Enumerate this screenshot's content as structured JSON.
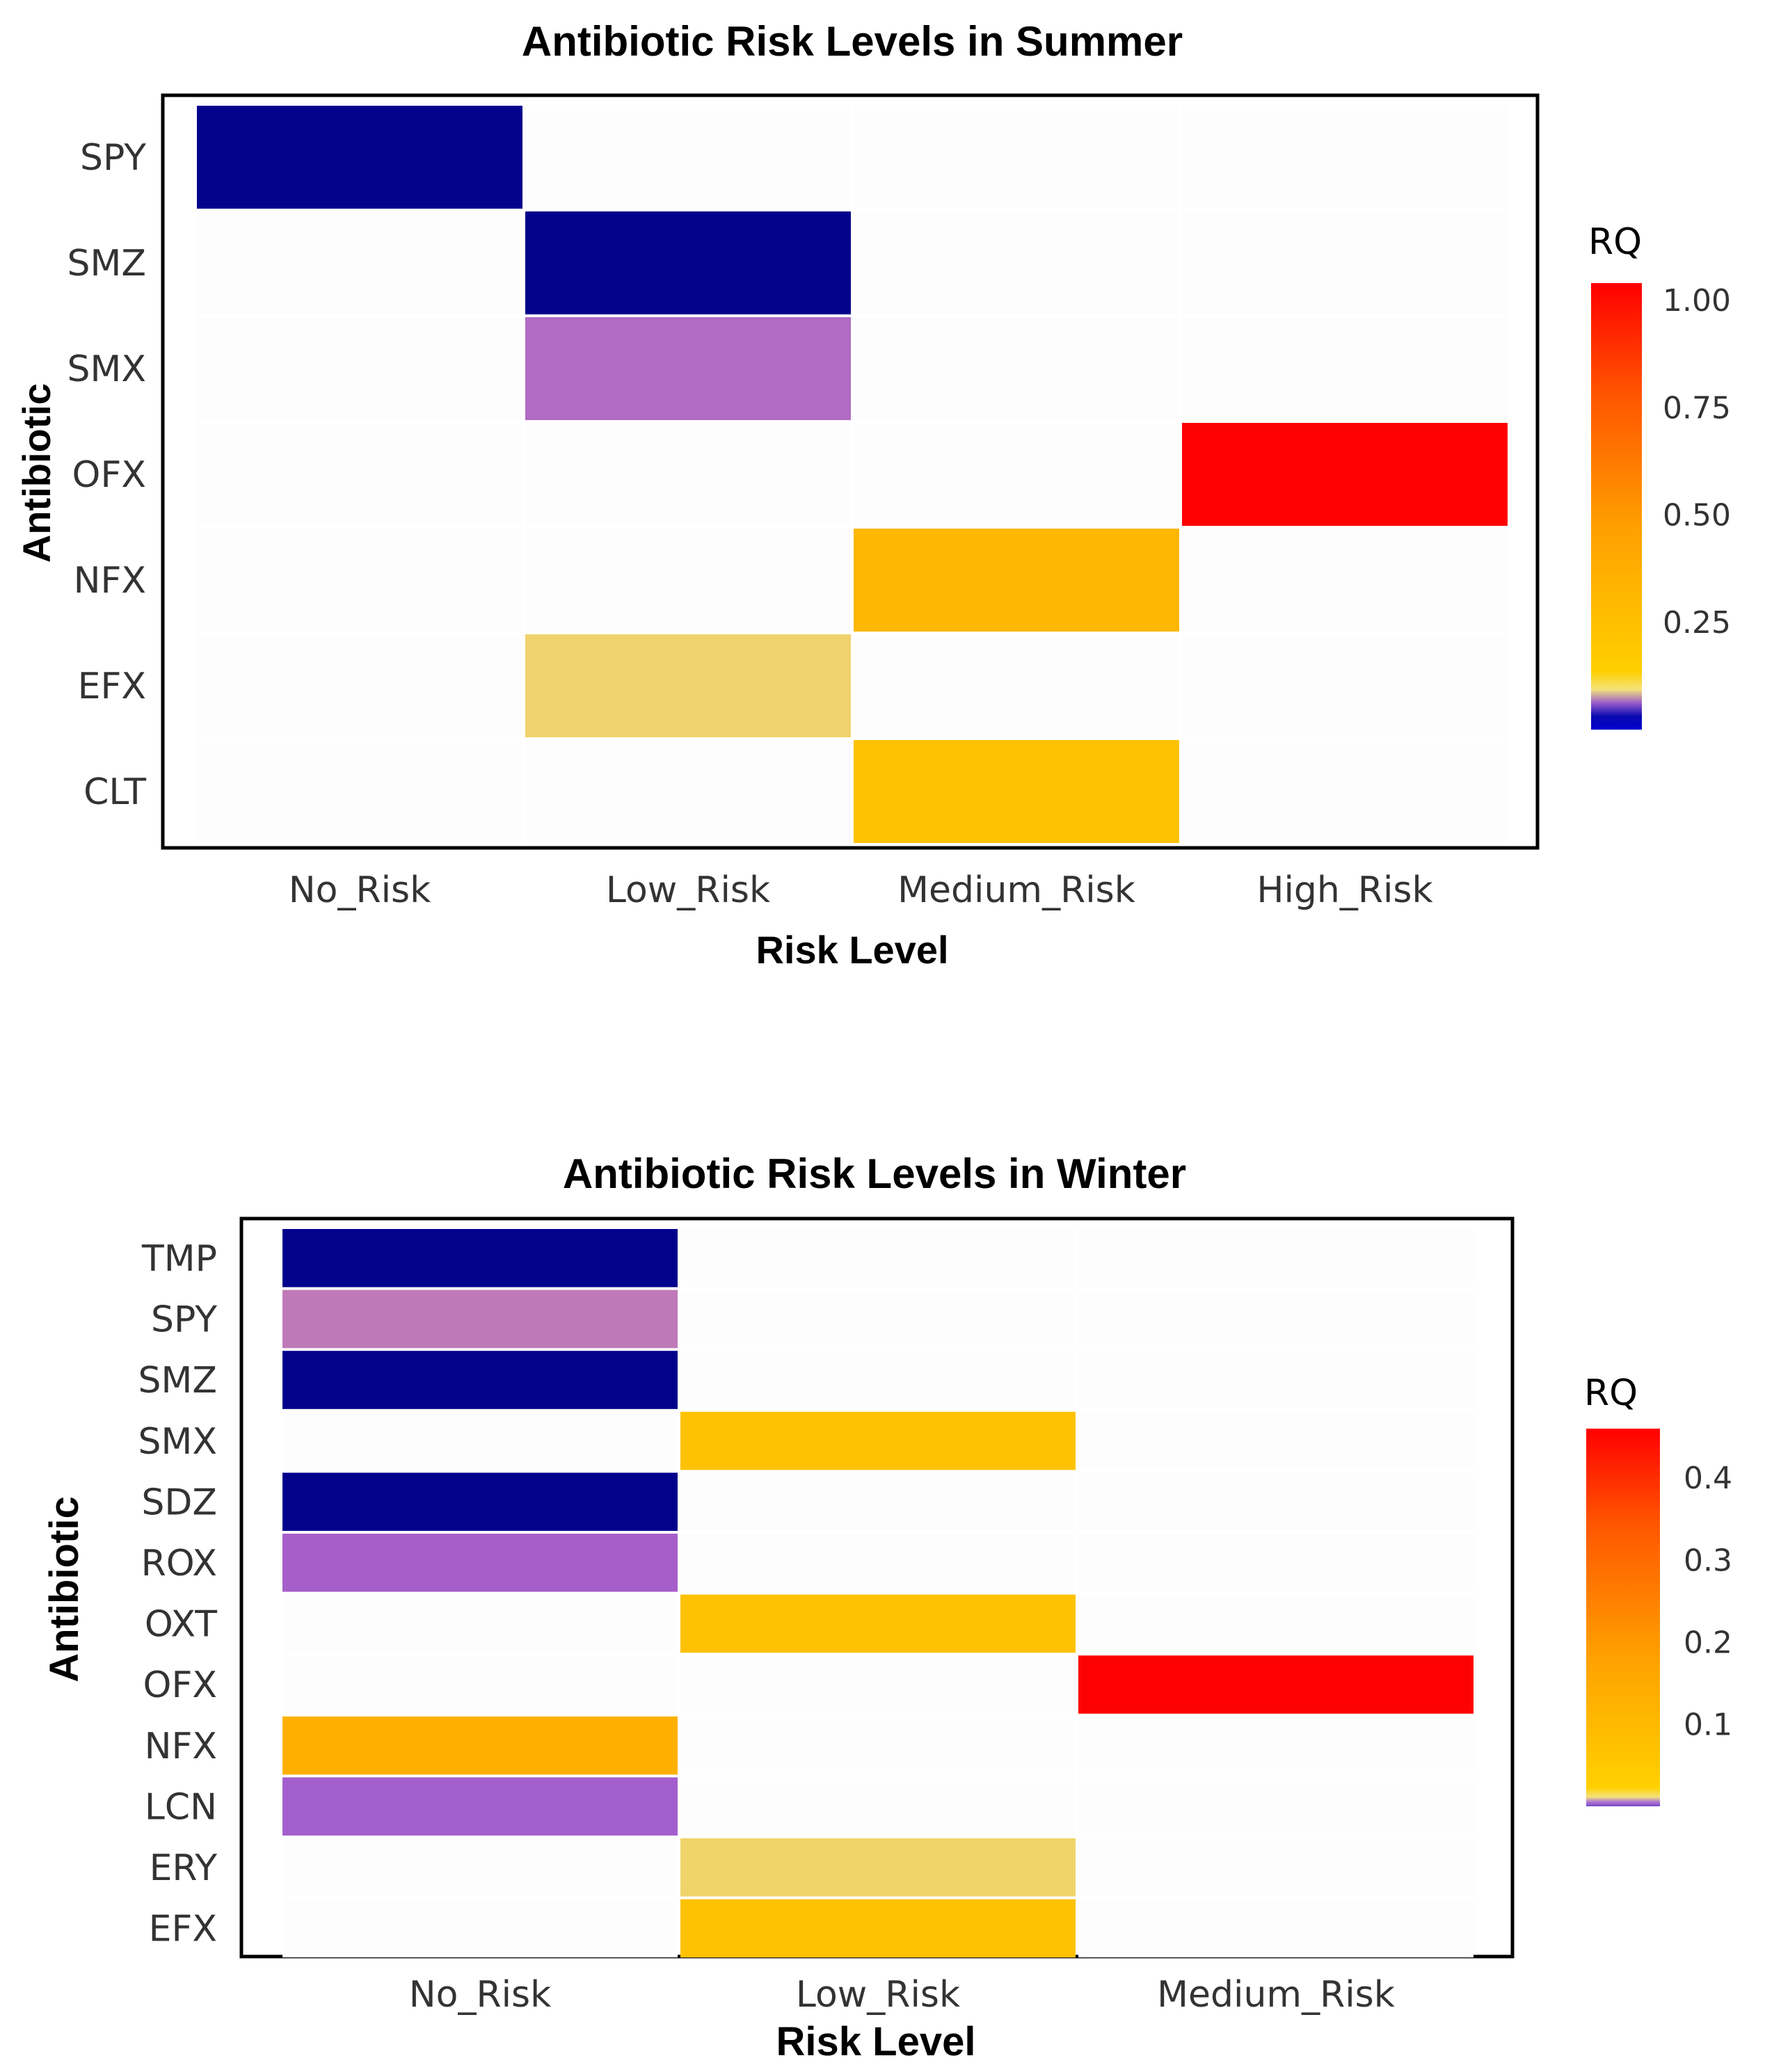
{
  "chart_data": [
    {
      "type": "heatmap",
      "title": "Antibiotic Risk Levels in Summer",
      "xlabel": "Risk Level",
      "ylabel": "Antibiotic",
      "x_categories": [
        "No_Risk",
        "Low_Risk",
        "Medium_Risk",
        "High_Risk"
      ],
      "y_categories": [
        "SPY",
        "SMZ",
        "SMX",
        "OFX",
        "NFX",
        "EFX",
        "CLT"
      ],
      "cells": [
        {
          "antibiotic": "SPY",
          "risk": "No_Risk",
          "rq": 0.01,
          "color": "#03028c"
        },
        {
          "antibiotic": "SMZ",
          "risk": "Low_Risk",
          "rq": 0.02,
          "color": "#03028c"
        },
        {
          "antibiotic": "SMX",
          "risk": "Low_Risk",
          "rq": 0.06,
          "color": "#b06bc3"
        },
        {
          "antibiotic": "OFX",
          "risk": "High_Risk",
          "rq": 1.0,
          "color": "#fe0202"
        },
        {
          "antibiotic": "NFX",
          "risk": "Medium_Risk",
          "rq": 0.35,
          "color": "#feb702"
        },
        {
          "antibiotic": "EFX",
          "risk": "Low_Risk",
          "rq": 0.12,
          "color": "#efd26c"
        },
        {
          "antibiotic": "CLT",
          "risk": "Medium_Risk",
          "rq": 0.25,
          "color": "#fec202"
        }
      ],
      "legend": {
        "title": "RQ",
        "ticks": [
          "1.00",
          "0.75",
          "0.50",
          "0.25"
        ],
        "position": "right"
      }
    },
    {
      "type": "heatmap",
      "title": "Antibiotic Risk Levels in Winter",
      "xlabel": "Risk Level",
      "ylabel": "Antibiotic",
      "x_categories": [
        "No_Risk",
        "Low_Risk",
        "Medium_Risk"
      ],
      "y_categories": [
        "TMP",
        "SPY",
        "SMZ",
        "SMX",
        "SDZ",
        "ROX",
        "OXT",
        "OFX",
        "NFX",
        "LCN",
        "ERY",
        "EFX"
      ],
      "cells": [
        {
          "antibiotic": "TMP",
          "risk": "No_Risk",
          "rq": 0.001,
          "color": "#03028c"
        },
        {
          "antibiotic": "SPY",
          "risk": "No_Risk",
          "rq": 0.005,
          "color": "#be7ab8"
        },
        {
          "antibiotic": "SMZ",
          "risk": "No_Risk",
          "rq": 0.001,
          "color": "#03028c"
        },
        {
          "antibiotic": "SMX",
          "risk": "Low_Risk",
          "rq": 0.03,
          "color": "#fec202"
        },
        {
          "antibiotic": "SDZ",
          "risk": "No_Risk",
          "rq": 0.001,
          "color": "#03028c"
        },
        {
          "antibiotic": "ROX",
          "risk": "No_Risk",
          "rq": 0.004,
          "color": "#a65fc9"
        },
        {
          "antibiotic": "OXT",
          "risk": "Low_Risk",
          "rq": 0.03,
          "color": "#fec202"
        },
        {
          "antibiotic": "OFX",
          "risk": "Medium_Risk",
          "rq": 0.45,
          "color": "#fe0202"
        },
        {
          "antibiotic": "NFX",
          "risk": "No_Risk",
          "rq": 0.08,
          "color": "#feb002"
        },
        {
          "antibiotic": "LCN",
          "risk": "No_Risk",
          "rq": 0.004,
          "color": "#a35fcd"
        },
        {
          "antibiotic": "ERY",
          "risk": "Low_Risk",
          "rq": 0.015,
          "color": "#efd46a"
        },
        {
          "antibiotic": "EFX",
          "risk": "Low_Risk",
          "rq": 0.03,
          "color": "#fec202"
        }
      ],
      "legend": {
        "title": "RQ",
        "ticks": [
          "0.4",
          "0.3",
          "0.2",
          "0.1"
        ],
        "position": "right"
      }
    }
  ]
}
